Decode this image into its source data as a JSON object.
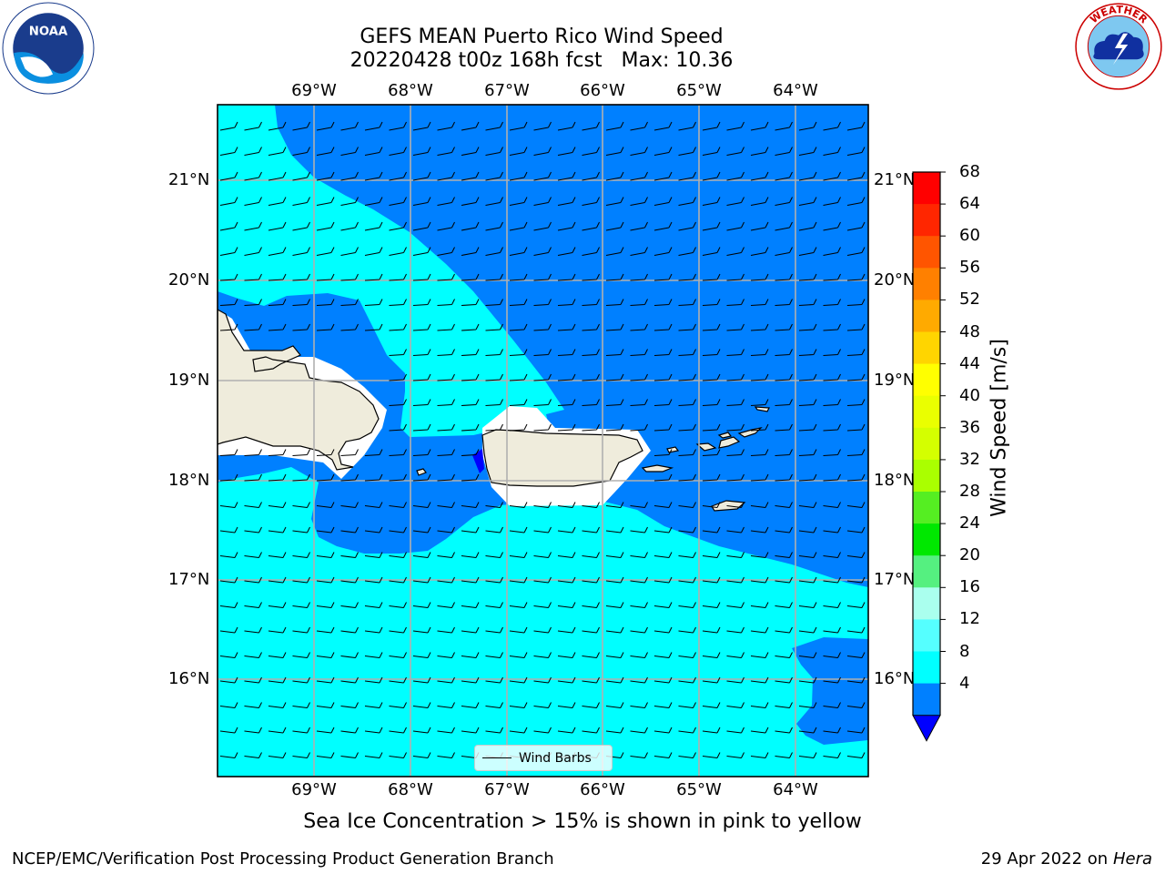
{
  "title": {
    "line1": "GEFS MEAN Puerto Rico Wind Speed",
    "line2": "20220428 t00z 168h fcst   Max: 10.36"
  },
  "map": {
    "lon_labels": [
      "69°W",
      "68°W",
      "67°W",
      "66°W",
      "65°W",
      "64°W"
    ],
    "lat_labels": [
      "21°N",
      "20°N",
      "19°N",
      "18°N",
      "17°N",
      "16°N"
    ],
    "legend_label": "Wind Barbs",
    "colors": {
      "ocean_low": "#0080ff",
      "ocean_mid": "#00ffff",
      "land": "#efecdc",
      "grid": "#b0b0b0",
      "low_pocket": "#0000ff"
    }
  },
  "colorbar": {
    "label": "Wind Speed [m/s]",
    "ticks": [
      "68",
      "64",
      "60",
      "56",
      "52",
      "48",
      "44",
      "40",
      "36",
      "32",
      "28",
      "24",
      "20",
      "16",
      "12",
      "8",
      "4"
    ],
    "colors": [
      "#ff0000",
      "#ff2600",
      "#ff5500",
      "#ff8000",
      "#ffaa00",
      "#ffd500",
      "#ffff00",
      "#eaff00",
      "#d4ff00",
      "#aaff00",
      "#55ee22",
      "#00e800",
      "#55f080",
      "#aaffee",
      "#55ffff",
      "#00ffff",
      "#0080ff"
    ],
    "under_color": "#0000ff"
  },
  "subtitle": "Sea Ice Concentration > 15% is shown in pink to yellow",
  "footer": {
    "left": "NCEP/EMC/Verification Post Processing Product Generation Branch",
    "right_prefix": "29 Apr 2022 on ",
    "right_host": "Hera"
  },
  "logos": {
    "left": "noaa-logo",
    "right": "national-weather-service-logo"
  }
}
